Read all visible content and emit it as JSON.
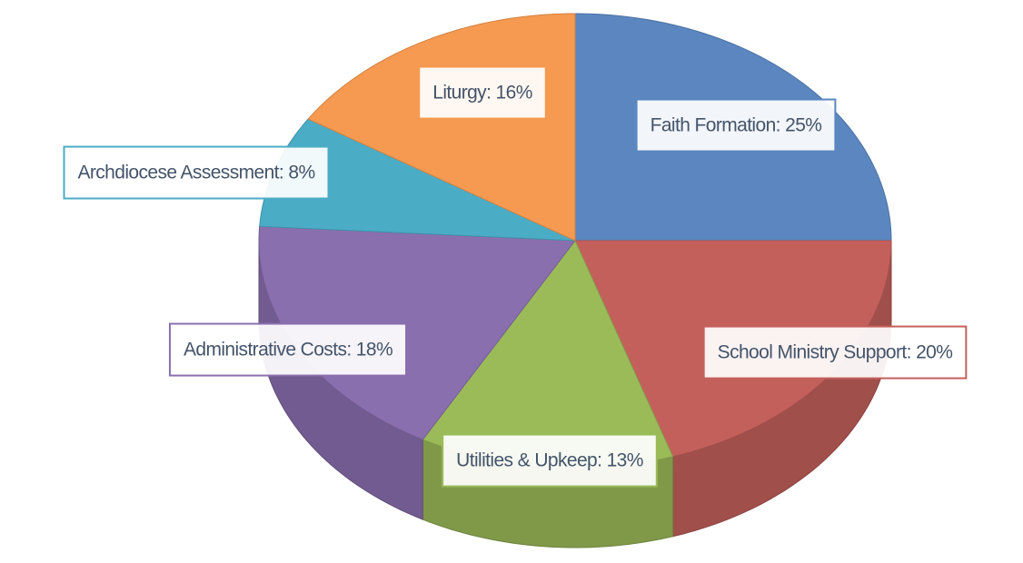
{
  "chart_data": {
    "type": "pie",
    "values": [
      25,
      20,
      13,
      18,
      8,
      16
    ],
    "value_labels": [
      "Faith Formation: 25%",
      "School Ministry Support: 20%",
      "Utilities & Upkeep: 13%",
      "Administrative Costs: 18%",
      "Archdiocese Assessment: 8%",
      "Liturgy: 16%"
    ],
    "colors": [
      "#5b86c0",
      "#c4605c",
      "#9bbb59",
      "#8a6faf",
      "#4bacc6",
      "#f59a50"
    ],
    "start_angle": 0,
    "direction": "clockwise"
  }
}
